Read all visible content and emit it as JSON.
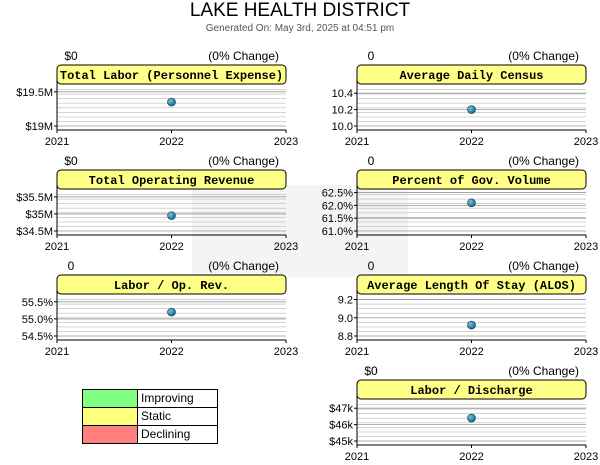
{
  "report": {
    "title": "LAKE HEALTH DISTRICT",
    "subtitle": "Generated On: May 3rd, 2025 at 04:51 pm"
  },
  "legend": [
    {
      "label": "Improving",
      "color": "#7fff7f"
    },
    {
      "label": "Static",
      "color": "#ffff7f"
    },
    {
      "label": "Declining",
      "color": "#ff7f7f"
    }
  ],
  "colors": {
    "title_box": "#ffff88",
    "point": "#1a6a8a",
    "grid": "#bbbbbb"
  },
  "chart_data": [
    {
      "type": "scatter",
      "title": "Total Labor (Personnel Expense)",
      "change_value": "$0",
      "change_pct": "(0% Change)",
      "x": [
        2021,
        2022,
        2023
      ],
      "xticks": [
        "2021",
        "2022",
        "2023"
      ],
      "points": [
        {
          "x": 2022,
          "y": 19.35
        }
      ],
      "yticks": [
        {
          "v": 19,
          "label": "$19M"
        },
        {
          "v": 19.5,
          "label": "$19.5M"
        }
      ],
      "ylim": [
        19,
        19.6
      ],
      "xlim": [
        2021,
        2023
      ]
    },
    {
      "type": "scatter",
      "title": "Average Daily Census",
      "change_value": "0",
      "change_pct": "(0% Change)",
      "x": [
        2021,
        2022,
        2023
      ],
      "xticks": [
        "2021",
        "2022",
        "2023"
      ],
      "points": [
        {
          "x": 2022,
          "y": 10.2
        }
      ],
      "yticks": [
        {
          "v": 10.0,
          "label": "10.0"
        },
        {
          "v": 10.2,
          "label": "10.2"
        },
        {
          "v": 10.4,
          "label": "10.4"
        }
      ],
      "ylim": [
        10.0,
        10.5
      ],
      "xlim": [
        2021,
        2023
      ]
    },
    {
      "type": "scatter",
      "title": "Total Operating Revenue",
      "change_value": "$0",
      "change_pct": "(0% Change)",
      "x": [
        2021,
        2022,
        2023
      ],
      "xticks": [
        "2021",
        "2022",
        "2023"
      ],
      "points": [
        {
          "x": 2022,
          "y": 34.95
        }
      ],
      "yticks": [
        {
          "v": 34.5,
          "label": "$34.5M"
        },
        {
          "v": 35,
          "label": "$35M"
        },
        {
          "v": 35.5,
          "label": "$35.5M"
        }
      ],
      "ylim": [
        34.5,
        35.7
      ],
      "xlim": [
        2021,
        2023
      ]
    },
    {
      "type": "scatter",
      "title": "Percent of Gov. Volume",
      "change_value": "0",
      "change_pct": "(0% Change)",
      "x": [
        2021,
        2022,
        2023
      ],
      "xticks": [
        "2021",
        "2022",
        "2023"
      ],
      "points": [
        {
          "x": 2022,
          "y": 62.1
        }
      ],
      "yticks": [
        {
          "v": 61.0,
          "label": "61.0%"
        },
        {
          "v": 61.5,
          "label": "61.5%"
        },
        {
          "v": 62.0,
          "label": "62.0%"
        },
        {
          "v": 62.5,
          "label": "62.5%"
        }
      ],
      "ylim": [
        61.0,
        62.6
      ],
      "xlim": [
        2021,
        2023
      ]
    },
    {
      "type": "scatter",
      "title": "Labor / Op. Rev.",
      "change_value": "0",
      "change_pct": "(0% Change)",
      "x": [
        2021,
        2022,
        2023
      ],
      "xticks": [
        "2021",
        "2022",
        "2023"
      ],
      "points": [
        {
          "x": 2022,
          "y": 55.2
        }
      ],
      "yticks": [
        {
          "v": 54.5,
          "label": "54.5%"
        },
        {
          "v": 55.0,
          "label": "55.0%"
        },
        {
          "v": 55.5,
          "label": "55.5%"
        }
      ],
      "ylim": [
        54.5,
        55.7
      ],
      "xlim": [
        2021,
        2023
      ]
    },
    {
      "type": "scatter",
      "title": "Average Length Of Stay (ALOS)",
      "change_value": "0",
      "change_pct": "(0% Change)",
      "x": [
        2021,
        2022,
        2023
      ],
      "xticks": [
        "2021",
        "2022",
        "2023"
      ],
      "points": [
        {
          "x": 2022,
          "y": 8.92
        }
      ],
      "yticks": [
        {
          "v": 8.8,
          "label": "8.8"
        },
        {
          "v": 9.0,
          "label": "9.0"
        },
        {
          "v": 9.2,
          "label": "9.2"
        }
      ],
      "ylim": [
        8.8,
        9.25
      ],
      "xlim": [
        2021,
        2023
      ]
    },
    {
      "type": "scatter",
      "title": "Labor / Discharge",
      "change_value": "$0",
      "change_pct": "(0% Change)",
      "x": [
        2021,
        2022,
        2023
      ],
      "xticks": [
        "2021",
        "2022",
        "2023"
      ],
      "points": [
        {
          "x": 2022,
          "y": 46.4
        }
      ],
      "yticks": [
        {
          "v": 45,
          "label": "$45k"
        },
        {
          "v": 46,
          "label": "$46k"
        },
        {
          "v": 47,
          "label": "$47k"
        }
      ],
      "ylim": [
        45,
        47.5
      ],
      "xlim": [
        2021,
        2023
      ]
    }
  ]
}
